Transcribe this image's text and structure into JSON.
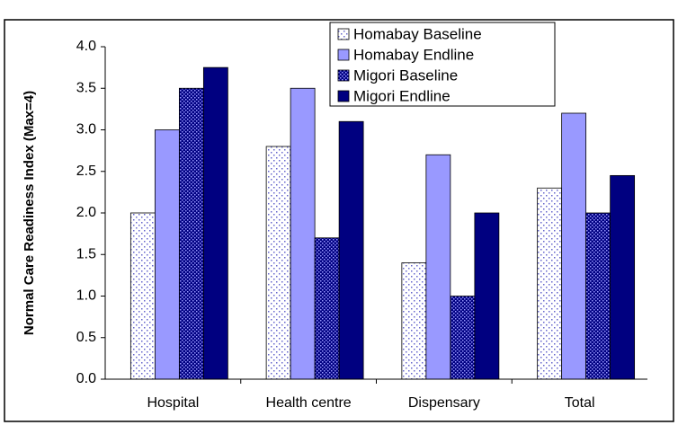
{
  "chart_data": {
    "type": "bar",
    "y_label": "Normal Care Readiness Index (Max=4)",
    "categories": [
      "Hospital",
      "Health centre",
      "Dispensary",
      "Total"
    ],
    "series": [
      {
        "name": "Homabay Baseline",
        "color": "#9999ff",
        "pattern": "dots-light",
        "values": [
          2.0,
          2.8,
          1.4,
          2.3
        ]
      },
      {
        "name": "Homabay Endline",
        "color": "#9999ff",
        "pattern": "solid",
        "values": [
          3.0,
          3.5,
          2.7,
          3.2
        ]
      },
      {
        "name": "Migori Baseline",
        "color": "#000080",
        "pattern": "dots-dark",
        "values": [
          3.5,
          1.7,
          1.0,
          2.0
        ]
      },
      {
        "name": "Migori Endline",
        "color": "#000080",
        "pattern": "solid",
        "values": [
          3.75,
          3.1,
          2.0,
          2.45
        ]
      }
    ],
    "ylim": [
      0,
      4
    ],
    "yticks": [
      {
        "value": 0,
        "label": "0.0"
      },
      0.5,
      {
        "value": 1,
        "label": "1.0"
      },
      1.5,
      {
        "value": 2,
        "label": "2.0"
      },
      2.5,
      {
        "value": 3,
        "label": "3.0"
      },
      3.5,
      {
        "value": 4,
        "label": "4.0"
      }
    ],
    "grid": false,
    "legend": "top"
  }
}
